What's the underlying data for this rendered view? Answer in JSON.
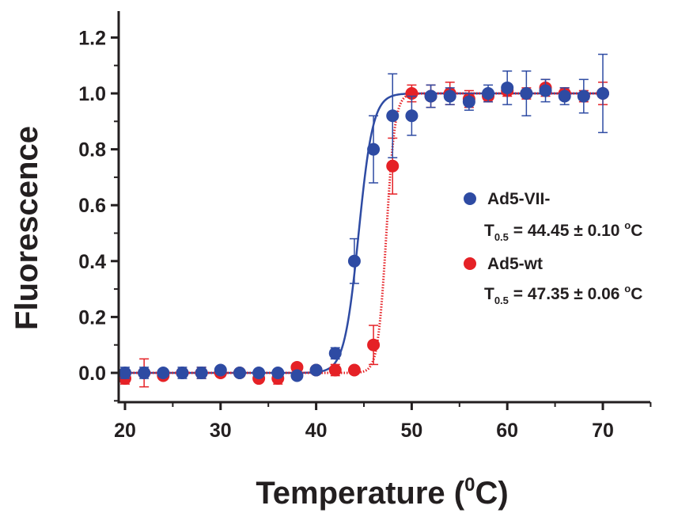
{
  "chart_data": {
    "type": "scatter",
    "title": "",
    "xlabel_main": "Temperature (",
    "xlabel_sup": "0",
    "xlabel_end": "C)",
    "ylabel": "Fluorescence",
    "xlim": [
      19,
      75
    ],
    "ylim": [
      -0.1,
      1.3
    ],
    "xticks": [
      20,
      30,
      40,
      50,
      60,
      70
    ],
    "yticks": [
      0.0,
      0.2,
      0.4,
      0.6,
      0.8,
      1.0,
      1.2
    ],
    "ytick_labels": [
      "0.0",
      "0.2",
      "0.4",
      "0.6",
      "0.8",
      "1.0",
      "1.2"
    ],
    "legend_position": "right, mid-height",
    "series": [
      {
        "name": "Ad5-VII-",
        "color": "#2e4ba3",
        "fit_style": "solid",
        "t_half_prefix": "T",
        "t_half_sub": "0.5",
        "t_half_value": " = 44.45 ± 0.10 ",
        "t_half_unit_sup": "o",
        "t_half_unit": "C",
        "fit_midpoint": 44.45,
        "fit_slope": 0.75,
        "x": [
          20,
          22,
          24,
          26,
          28,
          30,
          32,
          34,
          36,
          38,
          40,
          42,
          44,
          46,
          48,
          50,
          52,
          54,
          56,
          58,
          60,
          62,
          64,
          66,
          68,
          70
        ],
        "y": [
          0.0,
          0.0,
          0.0,
          0.0,
          0.0,
          0.01,
          0.0,
          0.0,
          0.0,
          -0.01,
          0.01,
          0.07,
          0.4,
          0.8,
          0.92,
          0.92,
          0.99,
          0.99,
          0.97,
          1.0,
          1.02,
          1.0,
          1.01,
          0.99,
          0.99,
          1.0
        ],
        "err": [
          0.02,
          0.02,
          0.01,
          0.02,
          0.02,
          0.01,
          0.01,
          0.01,
          0.01,
          0.01,
          0.01,
          0.02,
          0.08,
          0.12,
          0.15,
          0.07,
          0.04,
          0.03,
          0.03,
          0.03,
          0.06,
          0.08,
          0.04,
          0.03,
          0.06,
          0.14
        ]
      },
      {
        "name": "Ad5-wt",
        "color": "#e52126",
        "fit_style": "dotted",
        "t_half_prefix": "T",
        "t_half_sub": "0.5",
        "t_half_value": " = 47.35 ± 0.06 ",
        "t_half_unit_sup": "o",
        "t_half_unit": "C",
        "fit_midpoint": 47.35,
        "fit_slope": 0.45,
        "x": [
          20,
          22,
          24,
          26,
          28,
          30,
          32,
          34,
          36,
          38,
          40,
          42,
          44,
          46,
          48,
          50,
          52,
          54,
          56,
          58,
          60,
          62,
          64,
          66,
          68,
          70
        ],
        "y": [
          -0.02,
          0.0,
          -0.01,
          0.0,
          0.0,
          0.0,
          0.0,
          -0.02,
          -0.02,
          0.02,
          0.01,
          0.01,
          0.01,
          0.1,
          0.74,
          1.0,
          0.99,
          1.0,
          0.98,
          0.99,
          1.01,
          1.0,
          1.02,
          1.0,
          0.99,
          1.0
        ],
        "err": [
          0.02,
          0.05,
          0.01,
          0.01,
          0.02,
          0.01,
          0.01,
          0.01,
          0.02,
          0.01,
          0.01,
          0.02,
          0.01,
          0.07,
          0.1,
          0.03,
          0.04,
          0.04,
          0.03,
          0.02,
          0.02,
          0.02,
          0.03,
          0.02,
          0.02,
          0.04
        ]
      }
    ]
  }
}
